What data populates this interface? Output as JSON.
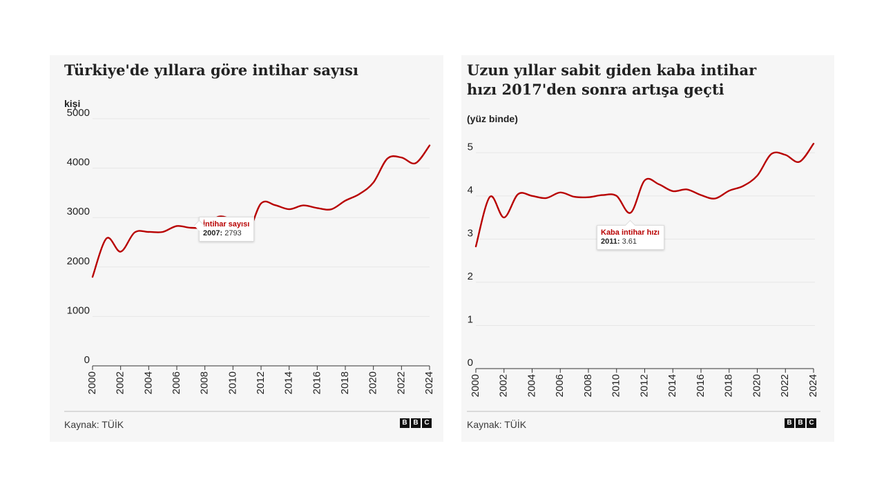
{
  "colors": {
    "line": "#b80000",
    "panel_bg": "#f6f6f6"
  },
  "source_label": "Kaynak: TÜİK",
  "logo": [
    "B",
    "B",
    "C"
  ],
  "chart_data": [
    {
      "type": "line",
      "title": "Türkiye'de yıllara göre intihar sayısı",
      "ylabel": "kişi",
      "xlim": [
        2000,
        2024
      ],
      "ylim": [
        0,
        5000
      ],
      "yticks": [
        0,
        1000,
        2000,
        3000,
        4000,
        5000
      ],
      "xticks": [
        2000,
        2002,
        2004,
        2006,
        2008,
        2010,
        2012,
        2014,
        2016,
        2018,
        2020,
        2022,
        2024
      ],
      "x": [
        2000,
        2001,
        2002,
        2003,
        2004,
        2005,
        2006,
        2007,
        2008,
        2009,
        2010,
        2011,
        2012,
        2013,
        2014,
        2015,
        2016,
        2017,
        2018,
        2019,
        2020,
        2021,
        2022,
        2023,
        2024
      ],
      "series": [
        {
          "name": "İntihar sayısı",
          "values": [
            1800,
            2580,
            2310,
            2700,
            2710,
            2710,
            2830,
            2793,
            2816,
            3020,
            2933,
            2677,
            3287,
            3252,
            3169,
            3246,
            3193,
            3168,
            3342,
            3476,
            3710,
            4194,
            4215,
            4100,
            4460
          ]
        }
      ],
      "tooltip": {
        "series": "İntihar sayısı",
        "year": "2007:",
        "value": "2793"
      }
    },
    {
      "type": "line",
      "title": "Uzun yıllar sabit giden kaba intihar hızı 2017'den sonra artışa geçti",
      "ylabel": "(yüz binde)",
      "xlim": [
        2000,
        2024
      ],
      "ylim": [
        0,
        5.5
      ],
      "yticks": [
        0,
        1,
        2,
        3,
        4,
        5
      ],
      "xticks": [
        2000,
        2002,
        2004,
        2006,
        2008,
        2010,
        2012,
        2014,
        2016,
        2018,
        2020,
        2022,
        2024
      ],
      "x": [
        2000,
        2001,
        2002,
        2003,
        2004,
        2005,
        2006,
        2007,
        2008,
        2009,
        2010,
        2011,
        2012,
        2013,
        2014,
        2015,
        2016,
        2017,
        2018,
        2019,
        2020,
        2021,
        2022,
        2023,
        2024
      ],
      "series": [
        {
          "name": "Kaba intihar hızı",
          "values": [
            2.83,
            3.98,
            3.5,
            4.04,
            4.0,
            3.95,
            4.08,
            3.98,
            3.97,
            4.02,
            4.0,
            3.61,
            4.36,
            4.27,
            4.11,
            4.15,
            4.02,
            3.94,
            4.12,
            4.23,
            4.47,
            4.97,
            4.95,
            4.79,
            5.21
          ]
        }
      ],
      "tooltip": {
        "series": "Kaba intihar hızı",
        "year": "2011:",
        "value": "3.61"
      }
    }
  ]
}
